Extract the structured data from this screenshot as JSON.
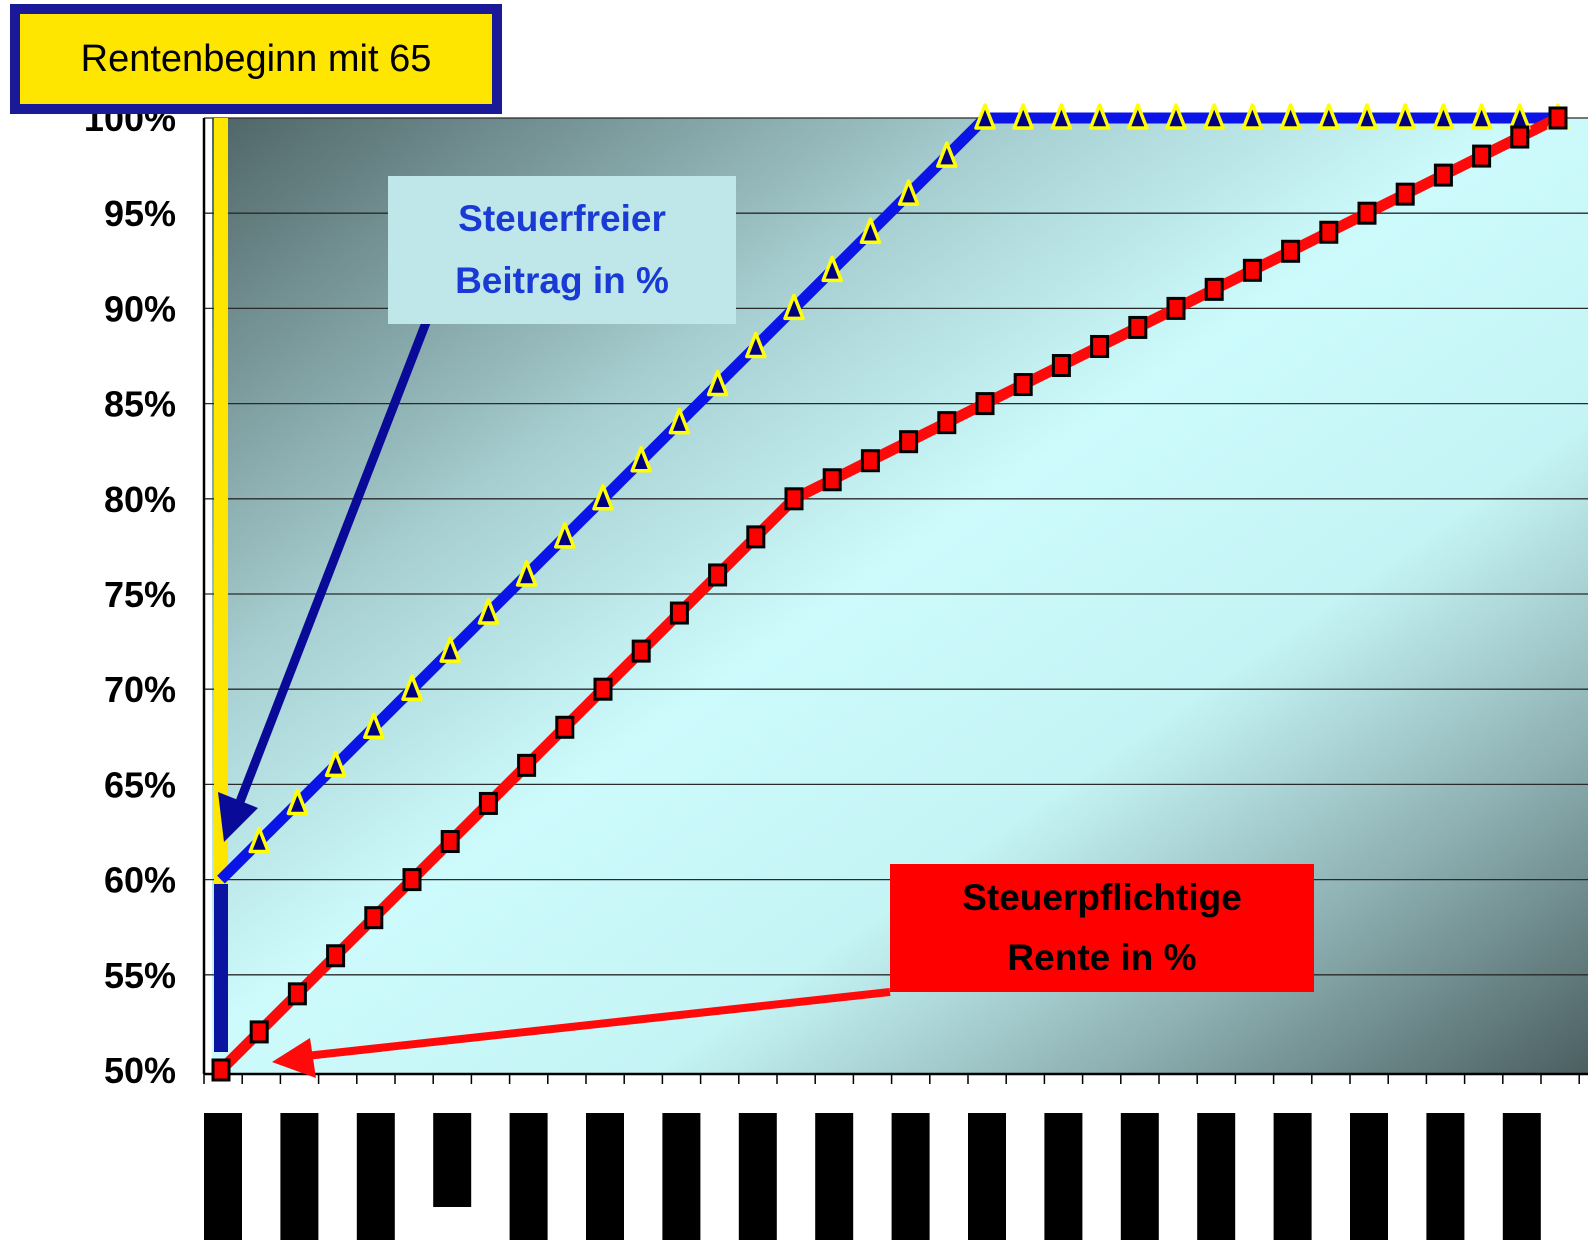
{
  "chart_data": {
    "type": "line",
    "title": "Rentenbeginn mit 65",
    "ylim": [
      50,
      100
    ],
    "y_ticks": [
      "50%",
      "55%",
      "60%",
      "65%",
      "70%",
      "75%",
      "80%",
      "85%",
      "90%",
      "95%",
      "100%"
    ],
    "x_count": 36,
    "grid": true,
    "series": [
      {
        "name": "Steuerfreier Beitrag in %",
        "color": "#0a14e6",
        "marker": "triangle",
        "values": [
          60,
          62,
          64,
          66,
          68,
          70,
          72,
          74,
          76,
          78,
          80,
          82,
          84,
          86,
          88,
          90,
          92,
          94,
          96,
          98,
          100,
          100,
          100,
          100,
          100,
          100,
          100,
          100,
          100,
          100,
          100,
          100,
          100,
          100,
          100,
          100
        ]
      },
      {
        "name": "Steuerpflichtige Rente in %",
        "color": "#ff0a0a",
        "marker": "square",
        "values": [
          50,
          52,
          54,
          56,
          58,
          60,
          62,
          64,
          66,
          68,
          70,
          72,
          74,
          76,
          78,
          80,
          81,
          82,
          83,
          84,
          85,
          86,
          87,
          88,
          89,
          90,
          91,
          92,
          93,
          94,
          95,
          96,
          97,
          98,
          99,
          100
        ]
      }
    ]
  },
  "annotations": {
    "title": "Rentenbeginn mit 65",
    "free_line1": "Steuerfreier",
    "free_line2": "Beitrag in %",
    "tax_line1": "Steuerpflichtige",
    "tax_line2": "Rente in %"
  },
  "colors": {
    "title_bg": "#ffe600",
    "title_border": "#1a1a99",
    "free_bg": "#bfe6e8",
    "free_text": "#1a3ad6",
    "tax_bg": "#ff0000",
    "start_marker": "#ffe600",
    "start_marker_low": "#0a14a0",
    "free_arrow": "#0a0a99",
    "tax_arrow": "#ff0a0a"
  }
}
